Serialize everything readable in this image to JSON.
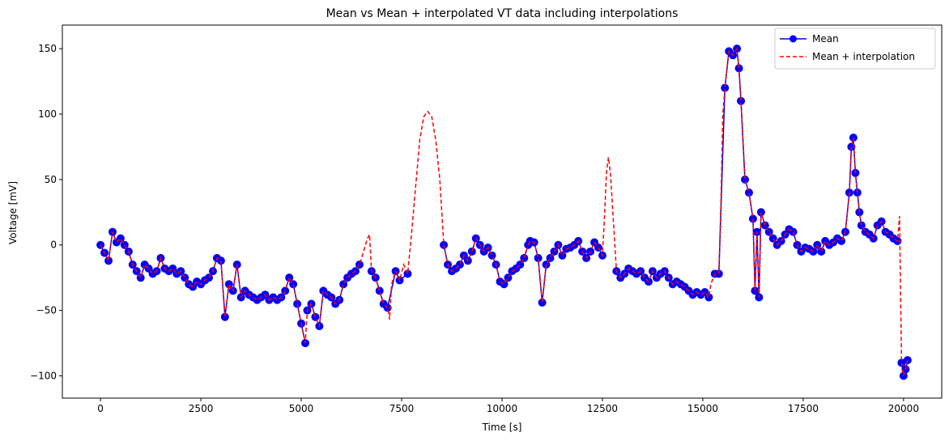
{
  "chart_data": {
    "type": "line",
    "title": "Mean vs Mean + interpolated VT data including interpolations",
    "xlabel": "Time [s]",
    "ylabel": "Voltage [mV]",
    "xlim": [
      -950,
      20950
    ],
    "ylim": [
      -117,
      168
    ],
    "xticks": [
      0,
      2500,
      5000,
      7500,
      10000,
      12500,
      15000,
      17500,
      20000
    ],
    "yticks": [
      -100,
      -50,
      0,
      50,
      100,
      150
    ],
    "grid": false,
    "legend_position": "top-right",
    "colors": {
      "mean": "#0000ff",
      "interp": "#ff0000",
      "axes": "#000000"
    },
    "series": [
      {
        "name": "Mean",
        "style": "solid line with circle markers",
        "color": "#0000ff",
        "segments": [
          {
            "x": [
              0,
              100,
              200,
              300,
              400,
              500,
              600,
              700,
              800,
              900,
              1000,
              1100,
              1200,
              1300,
              1400,
              1500,
              1600,
              1700,
              1800,
              1900,
              2000,
              2100,
              2200,
              2300,
              2400,
              2500,
              2600,
              2700,
              2800,
              2900,
              3000,
              3100,
              3200,
              3300,
              3400,
              3500,
              3600,
              3700,
              3800,
              3900,
              4000,
              4100,
              4200,
              4300,
              4400,
              4500,
              4600,
              4700,
              4800,
              4900,
              5000,
              5100
            ],
            "y": [
              0,
              -6,
              -12,
              10,
              2,
              5,
              0,
              -5,
              -15,
              -20,
              -25,
              -15,
              -18,
              -22,
              -20,
              -10,
              -18,
              -20,
              -18,
              -22,
              -20,
              -25,
              -30,
              -32,
              -28,
              -30,
              -27,
              -25,
              -20,
              -10,
              -12,
              -55,
              -30,
              -35,
              -15,
              -40,
              -35,
              -38,
              -40,
              -42,
              -40,
              -38,
              -42,
              -40,
              -42,
              -40,
              -35,
              -25,
              -30,
              -45,
              -60,
              -75
            ]
          },
          {
            "x": [
              5150,
              5250,
              5350,
              5450,
              5550,
              5650,
              5750,
              5850,
              5950,
              6050,
              6150,
              6250,
              6350,
              6450
            ],
            "y": [
              -50,
              -45,
              -55,
              -62,
              -35,
              -38,
              -40,
              -45,
              -42,
              -30,
              -25,
              -22,
              -20,
              -15
            ]
          },
          {
            "x": [
              6750,
              6850,
              6950,
              7050,
              7150,
              7350,
              7450,
              7650
            ],
            "y": [
              -20,
              -25,
              -35,
              -45,
              -48,
              -20,
              -27,
              -22
            ]
          },
          {
            "x": [
              8550,
              8650,
              8750,
              8850,
              8950,
              9050,
              9150,
              9250,
              9350,
              9450,
              9550,
              9650,
              9750,
              9850,
              9950,
              10050,
              10150,
              10250,
              10350,
              10450,
              10550,
              10650
            ],
            "y": [
              0,
              -15,
              -20,
              -18,
              -15,
              -8,
              -12,
              -5,
              5,
              0,
              -5,
              -2,
              -8,
              -15,
              -28,
              -30,
              -25,
              -20,
              -18,
              -15,
              -10,
              0
            ]
          },
          {
            "x": [
              10700,
              10800,
              10900,
              11000,
              11100,
              11200,
              11300,
              11400,
              11500,
              11600,
              11700,
              11800,
              11900,
              12000,
              12100,
              12200,
              12300,
              12400,
              12500
            ],
            "y": [
              3,
              2,
              -10,
              -44,
              -15,
              -10,
              -5,
              0,
              -8,
              -3,
              -2,
              0,
              3,
              -5,
              -10,
              -5,
              2,
              -2,
              -8
            ]
          },
          {
            "x": [
              12850,
              12950,
              13050,
              13150,
              13250,
              13350,
              13450,
              13550,
              13650,
              13750,
              13850,
              13950,
              14050,
              14150,
              14250,
              14350,
              14450,
              14550,
              14650,
              14750,
              14850,
              14950,
              15050,
              15150
            ],
            "y": [
              -20,
              -25,
              -22,
              -18,
              -20,
              -22,
              -20,
              -25,
              -28,
              -20,
              -25,
              -22,
              -20,
              -25,
              -30,
              -28,
              -30,
              -32,
              -35,
              -38,
              -36,
              -38,
              -36,
              -40
            ]
          },
          {
            "x": [
              15300,
              15400,
              15550,
              15650,
              15750,
              15850,
              15900,
              15950,
              16050,
              16150,
              16250,
              16300,
              16350,
              16400,
              16450,
              16550,
              16650,
              16750,
              16850,
              16950,
              17050,
              17150,
              17250,
              17350,
              17450,
              17550,
              17650,
              17750,
              17850,
              17950,
              18050,
              18150,
              18250,
              18350,
              18450,
              18550,
              18650,
              18700,
              18750,
              18800,
              18850,
              18900,
              18950,
              19050,
              19150,
              19250,
              19350,
              19450,
              19550,
              19650,
              19750,
              19850
            ],
            "y": [
              -22,
              -22,
              120,
              148,
              145,
              150,
              135,
              110,
              50,
              40,
              20,
              -35,
              10,
              -40,
              25,
              15,
              10,
              5,
              0,
              3,
              8,
              12,
              10,
              0,
              -5,
              -2,
              -3,
              -5,
              0,
              -5,
              3,
              0,
              2,
              5,
              3,
              10,
              40,
              75,
              82,
              55,
              40,
              25,
              15,
              10,
              8,
              5,
              15,
              18,
              10,
              8,
              5,
              3
            ]
          },
          {
            "x": [
              19950,
              20000,
              20050,
              20100
            ],
            "y": [
              -90,
              -100,
              -95,
              -88
            ]
          }
        ]
      },
      {
        "name": "Mean + interpolation",
        "style": "dashed line",
        "color": "#ff0000",
        "x": [
          0,
          100,
          200,
          300,
          400,
          500,
          600,
          700,
          800,
          900,
          1000,
          1100,
          1200,
          1300,
          1400,
          1500,
          1600,
          1700,
          1800,
          1900,
          2000,
          2100,
          2200,
          2300,
          2400,
          2500,
          2600,
          2700,
          2800,
          2900,
          3000,
          3100,
          3200,
          3300,
          3400,
          3500,
          3600,
          3700,
          3800,
          3900,
          4000,
          4100,
          4200,
          4300,
          4400,
          4500,
          4600,
          4700,
          4800,
          4900,
          5000,
          5100,
          5150,
          5250,
          5350,
          5450,
          5550,
          5650,
          5750,
          5850,
          5950,
          6050,
          6150,
          6250,
          6350,
          6450,
          6550,
          6650,
          6700,
          6750,
          6850,
          6950,
          7050,
          7150,
          7200,
          7250,
          7350,
          7450,
          7550,
          7650,
          7750,
          7850,
          7950,
          8050,
          8150,
          8250,
          8350,
          8450,
          8550,
          8650,
          8750,
          8850,
          8950,
          9050,
          9150,
          9250,
          9350,
          9450,
          9550,
          9650,
          9750,
          9850,
          9950,
          10050,
          10150,
          10250,
          10350,
          10450,
          10550,
          10650,
          10700,
          10800,
          10900,
          11000,
          11100,
          11200,
          11300,
          11400,
          11500,
          11600,
          11700,
          11800,
          11900,
          12000,
          12100,
          12200,
          12300,
          12400,
          12500,
          12550,
          12600,
          12650,
          12700,
          12750,
          12850,
          12950,
          13050,
          13150,
          13250,
          13350,
          13450,
          13550,
          13650,
          13750,
          13850,
          13950,
          14050,
          14150,
          14250,
          14350,
          14450,
          14550,
          14650,
          14750,
          14850,
          14950,
          15050,
          15150,
          15200,
          15300,
          15400,
          15450,
          15500,
          15550,
          15650,
          15750,
          15850,
          15900,
          15950,
          16050,
          16150,
          16250,
          16300,
          16350,
          16400,
          16450,
          16550,
          16650,
          16750,
          16850,
          16950,
          17050,
          17150,
          17250,
          17350,
          17450,
          17550,
          17650,
          17750,
          17850,
          17950,
          18050,
          18150,
          18250,
          18350,
          18450,
          18550,
          18650,
          18700,
          18750,
          18800,
          18850,
          18900,
          18950,
          19050,
          19150,
          19250,
          19350,
          19450,
          19550,
          19650,
          19750,
          19850,
          19900,
          19950,
          20000,
          20050,
          20100
        ],
        "y": [
          0,
          -6,
          -12,
          10,
          2,
          5,
          0,
          -5,
          -15,
          -20,
          -25,
          -15,
          -18,
          -22,
          -20,
          -10,
          -18,
          -20,
          -18,
          -22,
          -20,
          -25,
          -30,
          -32,
          -28,
          -30,
          -27,
          -25,
          -20,
          -10,
          -12,
          -55,
          -30,
          -35,
          -15,
          -40,
          -35,
          -38,
          -40,
          -42,
          -40,
          -38,
          -42,
          -40,
          -42,
          -40,
          -35,
          -25,
          -30,
          -45,
          -60,
          -75,
          -50,
          -45,
          -55,
          -62,
          -35,
          -38,
          -40,
          -45,
          -42,
          -30,
          -25,
          -22,
          -20,
          -15,
          -5,
          5,
          8,
          -20,
          -25,
          -35,
          -45,
          -48,
          -57,
          -30,
          -20,
          -27,
          -15,
          -22,
          10,
          45,
          80,
          98,
          102,
          98,
          80,
          50,
          0,
          -15,
          -20,
          -18,
          -15,
          -8,
          -12,
          -5,
          5,
          0,
          -5,
          -2,
          -8,
          -15,
          -28,
          -30,
          -25,
          -20,
          -18,
          -15,
          -10,
          0,
          3,
          2,
          -10,
          -44,
          -15,
          -10,
          -5,
          0,
          -8,
          -3,
          -2,
          0,
          3,
          -5,
          -10,
          -5,
          2,
          -2,
          -8,
          20,
          55,
          67,
          55,
          30,
          -20,
          -25,
          -22,
          -18,
          -20,
          -22,
          -20,
          -25,
          -28,
          -20,
          -25,
          -22,
          -20,
          -25,
          -30,
          -28,
          -30,
          -32,
          -35,
          -38,
          -36,
          -38,
          -36,
          -40,
          -30,
          -22,
          -22,
          30,
          100,
          120,
          148,
          145,
          150,
          135,
          110,
          50,
          40,
          20,
          -35,
          10,
          -40,
          25,
          15,
          10,
          5,
          0,
          3,
          8,
          12,
          10,
          0,
          -5,
          -2,
          -3,
          -5,
          0,
          -5,
          3,
          0,
          2,
          5,
          3,
          10,
          40,
          75,
          82,
          55,
          40,
          25,
          15,
          10,
          8,
          5,
          15,
          18,
          10,
          8,
          5,
          3,
          22,
          -90,
          -100,
          -95,
          -88
        ]
      }
    ]
  }
}
